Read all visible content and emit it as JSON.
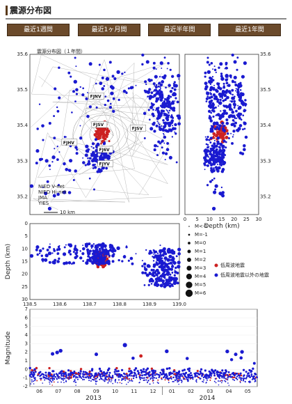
{
  "page": {
    "title": "震源分布図"
  },
  "tabs": [
    {
      "label": "最近1週間"
    },
    {
      "label": "最近1ヶ月間"
    },
    {
      "label": "最近半年間"
    },
    {
      "label": "最近1年間"
    }
  ],
  "colors": {
    "tab_bg": "#6b4a2b",
    "low_freq": "#cc2222",
    "other": "#1a1ad0"
  },
  "chart_data": [
    {
      "type": "scatter",
      "title": "震源分布図（１年間）",
      "xlim": [
        138.5,
        139.0
      ],
      "ylim": [
        35.15,
        35.6
      ],
      "y_ticks": [
        "35.2",
        "35.3",
        "35.4",
        "35.5",
        "35.6"
      ],
      "stations": [
        "FJNV",
        "FJSV",
        "FJHV",
        "FJ6V",
        "FJYV",
        "FJSV"
      ],
      "legend": [
        "NIED V-net",
        "NIED Hi-net",
        "JMA",
        "YIES"
      ],
      "scale_label": "10 km",
      "series": [
        {
          "name": "低周波地震",
          "color": "#cc2222",
          "clusters": [
            [
              138.74,
              35.38,
              0.015,
              0.018,
              90
            ]
          ]
        },
        {
          "name": "低周波地震以外の地震",
          "color": "#1a1ad0",
          "clusters": [
            [
              138.73,
              35.31,
              0.03,
              0.03,
              120
            ],
            [
              138.95,
              35.45,
              0.05,
              0.09,
              260
            ],
            [
              138.72,
              35.5,
              0.12,
              0.06,
              60
            ],
            [
              138.6,
              35.3,
              0.08,
              0.1,
              50
            ]
          ]
        }
      ]
    },
    {
      "type": "scatter",
      "xlabel": "Depth (km)",
      "xlim": [
        0,
        30
      ],
      "ylim": [
        35.15,
        35.6
      ],
      "x_ticks": [
        "0",
        "5",
        "10",
        "15",
        "20",
        "25",
        "30"
      ],
      "y_ticks": [
        "35.2",
        "35.3",
        "35.4",
        "35.5",
        "35.6"
      ]
    },
    {
      "type": "scatter",
      "ylabel": "Depth (km)",
      "xlim": [
        138.5,
        139.0
      ],
      "ylim": [
        0,
        30
      ],
      "x_ticks": [
        "138.5",
        "138.6",
        "138.7",
        "138.8",
        "138.9",
        "139.0"
      ],
      "y_ticks": [
        "0",
        "5",
        "10",
        "15",
        "20",
        "25",
        "30"
      ],
      "magnitude_legend": [
        "M<-1",
        "M=-1",
        "M=0",
        "M=1",
        "M=2",
        "M=3",
        "M=4",
        "M=5",
        "M=6"
      ],
      "series_legend": [
        {
          "name": "低周波地震",
          "color": "#cc2222"
        },
        {
          "name": "低周波地震以外の地震",
          "color": "#1a1ad0"
        }
      ]
    },
    {
      "type": "scatter",
      "ylabel": "Magnitude",
      "ylim": [
        -2,
        7
      ],
      "y_ticks": [
        "-2",
        "-1",
        "0",
        "1",
        "2",
        "3",
        "4",
        "5",
        "6",
        "7"
      ],
      "x_ticks": [
        "06",
        "07",
        "08",
        "09",
        "10",
        "11",
        "12",
        "01",
        "02",
        "03",
        "04",
        "05"
      ],
      "year_labels": [
        "2013",
        "2014"
      ]
    }
  ]
}
